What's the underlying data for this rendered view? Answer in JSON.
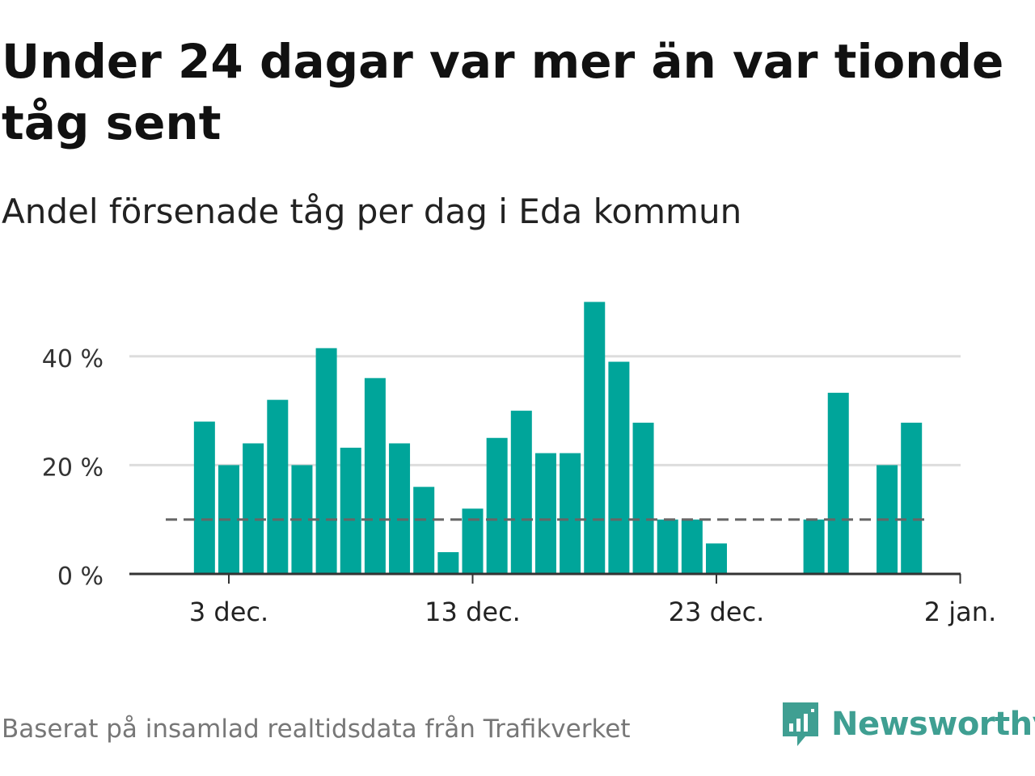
{
  "title": "Under 24 dagar var mer än var tionde tåg sent",
  "subtitle": "Andel försenade tåg per dag i Eda kommun",
  "footer": "Baserat på insamlad realtidsdata från Trafikverket",
  "brand": "Newsworthy",
  "colors": {
    "bar": "#00a59a",
    "grid": "#dddddd",
    "reference": "#666666",
    "axis": "#333333",
    "brand": "#3f9f92"
  },
  "chart_data": {
    "type": "bar",
    "x": [
      "2023-12-02",
      "2023-12-03",
      "2023-12-04",
      "2023-12-05",
      "2023-12-06",
      "2023-12-07",
      "2023-12-08",
      "2023-12-09",
      "2023-12-10",
      "2023-12-11",
      "2023-12-12",
      "2023-12-13",
      "2023-12-14",
      "2023-12-15",
      "2023-12-16",
      "2023-12-17",
      "2023-12-18",
      "2023-12-19",
      "2023-12-20",
      "2023-12-21",
      "2023-12-22",
      "2023-12-23",
      "2023-12-24",
      "2023-12-25",
      "2023-12-26",
      "2023-12-27",
      "2023-12-28",
      "2023-12-29",
      "2023-12-30",
      "2023-12-31"
    ],
    "values": [
      28,
      20,
      24,
      32,
      20,
      41.5,
      23.2,
      36,
      24,
      16,
      4,
      12,
      25,
      30,
      22.2,
      22.2,
      50,
      39,
      27.8,
      10,
      10,
      5.6,
      null,
      null,
      0,
      10,
      33.3,
      null,
      20,
      27.8
    ],
    "reference_line": {
      "value": 10,
      "style": "dashed",
      "from": "2023-12-01",
      "to": "2024-01-01"
    },
    "ylim": [
      0,
      50
    ],
    "yticks": [
      0,
      20,
      40
    ],
    "ytick_labels": [
      "0 %",
      "20 %",
      "40 %"
    ],
    "xticks": [
      "2023-12-03",
      "2023-12-13",
      "2023-12-23",
      "2024-01-02"
    ],
    "xtick_labels": [
      "3 dec.",
      "13 dec.",
      "23 dec.",
      "2 jan."
    ],
    "grid": "horizontal",
    "legend": "none"
  }
}
